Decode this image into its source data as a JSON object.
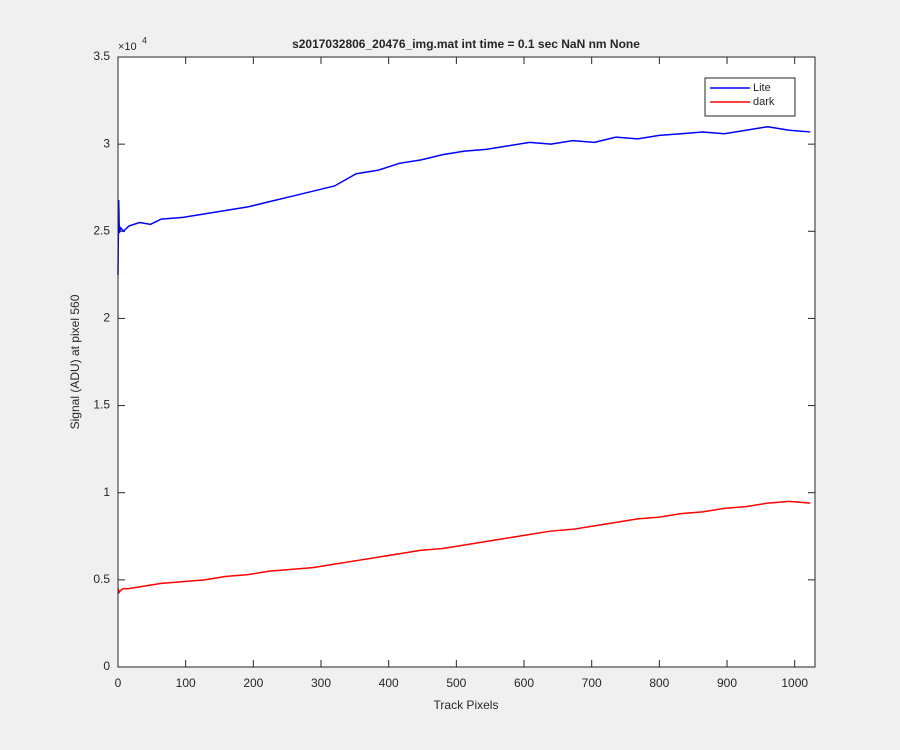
{
  "chart_data": {
    "type": "line",
    "title": "s2017032806_20476_img.mat int time = 0.1 sec  NaN nm None",
    "xlabel": "Track Pixels",
    "ylabel": "Signal (ADU) at pixel 560",
    "y_multiplier": {
      "base": "×10",
      "exponent": "4"
    },
    "x": [
      0,
      1,
      2,
      4,
      8,
      16,
      32,
      48,
      64,
      96,
      128,
      160,
      192,
      224,
      256,
      288,
      320,
      352,
      384,
      416,
      448,
      480,
      512,
      544,
      576,
      608,
      640,
      672,
      704,
      736,
      768,
      800,
      832,
      864,
      896,
      928,
      960,
      992,
      1023
    ],
    "series": [
      {
        "name": "Lite",
        "color": "#0000ff",
        "values": [
          2.25,
          2.68,
          2.49,
          2.52,
          2.5,
          2.53,
          2.55,
          2.54,
          2.57,
          2.58,
          2.6,
          2.62,
          2.64,
          2.67,
          2.7,
          2.73,
          2.76,
          2.83,
          2.85,
          2.89,
          2.91,
          2.94,
          2.96,
          2.97,
          2.99,
          3.01,
          3.0,
          3.02,
          3.01,
          3.04,
          3.03,
          3.05,
          3.06,
          3.07,
          3.06,
          3.08,
          3.1,
          3.08,
          3.07
        ]
      },
      {
        "name": "dark",
        "color": "#ff0000",
        "values": [
          0.42,
          0.44,
          0.43,
          0.44,
          0.45,
          0.45,
          0.46,
          0.47,
          0.48,
          0.49,
          0.5,
          0.52,
          0.53,
          0.55,
          0.56,
          0.57,
          0.59,
          0.61,
          0.63,
          0.65,
          0.67,
          0.68,
          0.7,
          0.72,
          0.74,
          0.76,
          0.78,
          0.79,
          0.81,
          0.83,
          0.85,
          0.86,
          0.88,
          0.89,
          0.91,
          0.92,
          0.94,
          0.95,
          0.94
        ]
      }
    ],
    "xlim": [
      0,
      1030
    ],
    "xticks": [
      0,
      100,
      200,
      300,
      400,
      500,
      600,
      700,
      800,
      900,
      1000
    ],
    "ylim": [
      0,
      3.5
    ],
    "yticks": [
      0,
      0.5,
      1,
      1.5,
      2,
      2.5,
      3,
      3.5
    ],
    "legend": "northeast",
    "grid": false
  }
}
